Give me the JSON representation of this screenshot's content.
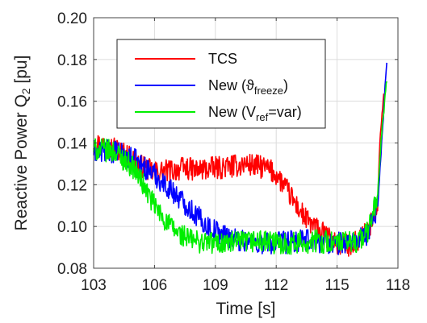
{
  "chart_data": {
    "type": "line",
    "title": "",
    "xlabel": "Time [s]",
    "ylabel_main": "Reactive Power Q",
    "ylabel_sub": "2",
    "ylabel_unit": " [pu]",
    "xlim": [
      103,
      118
    ],
    "ylim": [
      0.08,
      0.2
    ],
    "xticks": [
      103,
      106,
      109,
      112,
      115,
      118
    ],
    "xtick_labels": [
      "103",
      "106",
      "109",
      "112",
      "115",
      "118"
    ],
    "yticks": [
      0.08,
      0.1,
      0.12,
      0.14,
      0.16,
      0.18,
      0.2
    ],
    "ytick_labels": [
      "0.08",
      "0.10",
      "0.12",
      "0.14",
      "0.16",
      "0.18",
      "0.20"
    ],
    "grid": true,
    "legend_position": "top-right",
    "legend": [
      {
        "main": "TCS",
        "sub": "",
        "tail": ""
      },
      {
        "main": "New (ϑ",
        "sub": "freeze",
        "tail": ")"
      },
      {
        "main": "New (V",
        "sub": "ref",
        "tail": "=var)"
      }
    ],
    "series": [
      {
        "name": "TCS",
        "color": "#ff0000",
        "noise": 0.0055,
        "x": [
          103,
          104,
          105,
          105.5,
          106,
          107,
          107.5,
          108,
          109,
          110,
          110.5,
          111,
          111.5,
          112,
          112.5,
          113,
          113.5,
          114,
          114.5,
          115,
          115.5,
          116,
          116.5,
          117,
          117.1,
          117.3
        ],
        "y": [
          0.14,
          0.138,
          0.132,
          0.128,
          0.126,
          0.127,
          0.128,
          0.127,
          0.128,
          0.129,
          0.13,
          0.129,
          0.128,
          0.125,
          0.118,
          0.11,
          0.103,
          0.099,
          0.095,
          0.092,
          0.091,
          0.093,
          0.098,
          0.108,
          0.14,
          0.163
        ]
      },
      {
        "name": "New (ϑfreeze)",
        "color": "#0000ff",
        "noise": 0.0055,
        "x": [
          103,
          104,
          105,
          106,
          106.5,
          107,
          107.5,
          108,
          108.5,
          109,
          109.5,
          110,
          111,
          112,
          113,
          114,
          115,
          116,
          116.5,
          117,
          117.2,
          117.45
        ],
        "y": [
          0.136,
          0.136,
          0.132,
          0.125,
          0.12,
          0.116,
          0.111,
          0.106,
          0.101,
          0.098,
          0.096,
          0.094,
          0.092,
          0.092,
          0.093,
          0.093,
          0.092,
          0.093,
          0.096,
          0.11,
          0.14,
          0.18
        ]
      },
      {
        "name": "New (Vref=var)",
        "color": "#00ee00",
        "noise": 0.0055,
        "x": [
          103,
          104,
          105,
          105.5,
          106,
          106.5,
          107,
          107.5,
          108,
          109,
          110,
          111,
          112,
          113,
          114,
          115,
          116,
          116.5,
          117,
          117.2,
          117.45
        ],
        "y": [
          0.137,
          0.136,
          0.128,
          0.119,
          0.11,
          0.103,
          0.098,
          0.095,
          0.093,
          0.092,
          0.092,
          0.093,
          0.092,
          0.092,
          0.093,
          0.092,
          0.093,
          0.097,
          0.115,
          0.145,
          0.17
        ]
      }
    ]
  }
}
